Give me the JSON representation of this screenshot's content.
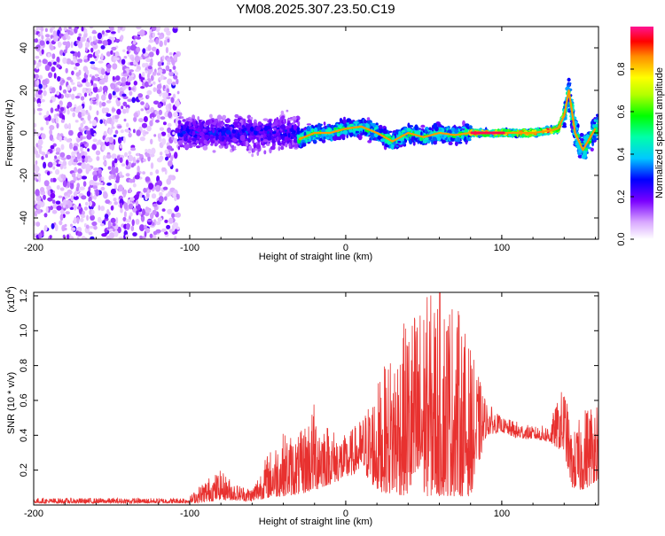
{
  "title": "YM08.2025.307.23.50.C19",
  "chart_data": [
    {
      "type": "heatmap",
      "name": "spectrogram",
      "xlabel": "Height of straight line (km)",
      "ylabel": "Frequency (Hz)",
      "xlim": [
        -200,
        162
      ],
      "ylim": [
        -50,
        50
      ],
      "x_ticks": [
        -200,
        -100,
        0,
        100
      ],
      "y_ticks": [
        -40,
        -20,
        0,
        20,
        40
      ],
      "colorbar": {
        "label": "Normalized spectral amplitude",
        "range": [
          0,
          1
        ],
        "ticks": [
          "0.0",
          "0.2",
          "0.4",
          "0.6",
          "0.8"
        ],
        "tick_values": [
          0,
          0.2,
          0.4,
          0.6,
          0.8
        ]
      },
      "regions": [
        {
          "name": "diffuse noise",
          "x_range": [
            -200,
            -107
          ],
          "y_range": [
            -50,
            50
          ],
          "amplitude": 0.15
        },
        {
          "name": "scattered wideband",
          "x_range": [
            -107,
            -30
          ],
          "center_freq": 0,
          "spread": 12,
          "amplitude": 0.3
        },
        {
          "name": "narrow trace",
          "x_range": [
            -30,
            80
          ],
          "center_freq": 0,
          "spread": 6,
          "amplitude": 0.6
        },
        {
          "name": "tone",
          "x_range": [
            80,
            140
          ],
          "center_freq": 0,
          "spread": 2,
          "amplitude": 0.95
        },
        {
          "name": "spike",
          "x_range": [
            140,
            162
          ],
          "center_freq": 10,
          "spread": 10,
          "amplitude": 0.6
        }
      ],
      "trace": {
        "x": [
          -30,
          -20,
          -10,
          0,
          10,
          20,
          30,
          40,
          50,
          60,
          70,
          80,
          90,
          100,
          110,
          120,
          130,
          136,
          140,
          143,
          147,
          152,
          156,
          160
        ],
        "y": [
          -3,
          0,
          0,
          2,
          3,
          0,
          -4,
          0,
          -2,
          0,
          -1,
          0,
          0,
          0,
          0,
          0,
          1,
          2,
          8,
          20,
          0,
          -8,
          -3,
          2
        ]
      }
    },
    {
      "type": "line",
      "name": "snr",
      "xlabel": "Height of straight line (km)",
      "ylabel": "SNR (10 * v/v)",
      "y_multiplier": "(x10",
      "y_multiplier_exp": "4",
      "y_multiplier_close": ")",
      "xlim": [
        -200,
        162
      ],
      "ylim": [
        0,
        12200
      ],
      "x_ticks": [
        -200,
        -100,
        0,
        100
      ],
      "y_ticks": [
        "0.2",
        "0.4",
        "0.6",
        "0.8",
        "1.0",
        "1.2"
      ],
      "y_tick_values": [
        2000,
        4000,
        6000,
        8000,
        10000,
        12000
      ],
      "series": [
        {
          "name": "SNR",
          "color": "#e8312f",
          "envelope": {
            "x": [
              -200,
              -110,
              -100,
              -90,
              -80,
              -70,
              -60,
              -50,
              -40,
              -30,
              -20,
              -10,
              0,
              10,
              20,
              30,
              40,
              50,
              60,
              70,
              80,
              90,
              100,
              110,
              120,
              130,
              140,
              145,
              150,
              155,
              162
            ],
            "low": [
              100,
              100,
              100,
              150,
              300,
              250,
              200,
              400,
              500,
              600,
              800,
              1200,
              1500,
              2000,
              800,
              600,
              500,
              500,
              500,
              500,
              500,
              4000,
              4200,
              3800,
              3800,
              3600,
              3000,
              1000,
              800,
              1000,
              1500
            ],
            "high": [
              400,
              400,
              500,
              1500,
              2000,
              1200,
              1000,
              3000,
              4200,
              4000,
              6000,
              4500,
              4000,
              5000,
              7000,
              9000,
              11000,
              12000,
              12500,
              12000,
              9000,
              6000,
              5000,
              4800,
              4500,
              4600,
              7000,
              4000,
              5000,
              6000,
              6500
            ]
          }
        }
      ]
    }
  ]
}
